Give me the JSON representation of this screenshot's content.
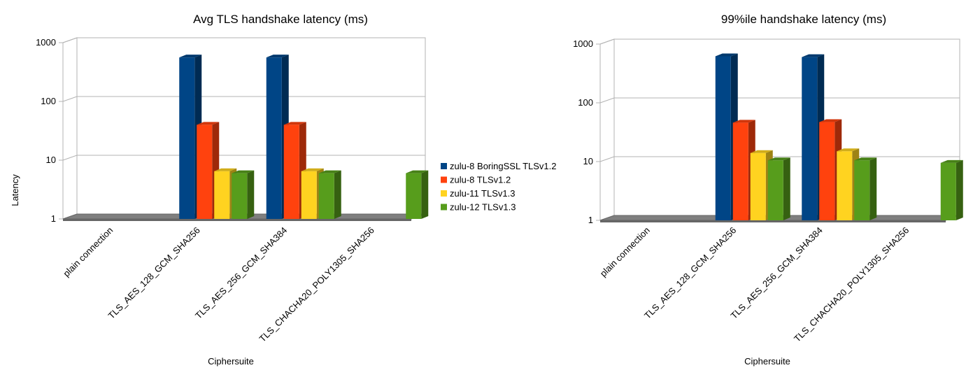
{
  "legend": {
    "placement": "between charts",
    "items": [
      {
        "label": "zulu-8 BoringSSL TLSv1.2",
        "color": "#004586"
      },
      {
        "label": "zulu-8 TLSv1.2",
        "color": "#ff420e"
      },
      {
        "label": "zulu-11 TLSv1.3",
        "color": "#ffd320"
      },
      {
        "label": "zulu-12 TLSv1.3",
        "color": "#579d1c"
      }
    ]
  },
  "chart_data": [
    {
      "type": "bar",
      "title": "Avg TLS handshake latency (ms)",
      "xlabel": "Ciphersuite",
      "ylabel": "Latency",
      "yscale": "log",
      "ylim": [
        1,
        1000
      ],
      "yticks": [
        "1",
        "10",
        "100",
        "1000"
      ],
      "grid": true,
      "categories": [
        "plain connection",
        "TLS_AES_128_GCM_SHA256",
        "TLS_AES_256_GCM_SHA384",
        "TLS_CHACHA20_POLY1305_SHA256"
      ],
      "series": [
        {
          "name": "zulu-8 BoringSSL TLSv1.2",
          "color": "#004586",
          "values": [
            null,
            560,
            560,
            null
          ]
        },
        {
          "name": "zulu-8 TLSv1.2",
          "color": "#ff420e",
          "values": [
            null,
            40,
            40,
            null
          ]
        },
        {
          "name": "zulu-11 TLSv1.3",
          "color": "#ffd320",
          "values": [
            null,
            6.5,
            6.5,
            null
          ]
        },
        {
          "name": "zulu-12 TLSv1.3",
          "color": "#579d1c",
          "values": [
            null,
            6,
            6,
            6
          ]
        }
      ]
    },
    {
      "type": "bar",
      "title": "99%ile handshake latency (ms)",
      "xlabel": "Ciphersuite",
      "ylabel": "",
      "yscale": "log",
      "ylim": [
        1,
        1000
      ],
      "yticks": [
        "1",
        "10",
        "100",
        "1000"
      ],
      "grid": true,
      "categories": [
        "plain connection",
        "TLS_AES_128_GCM_SHA256",
        "TLS_AES_256_GCM_SHA384",
        "TLS_CHACHA20_POLY1305_SHA256"
      ],
      "series": [
        {
          "name": "zulu-8 BoringSSL TLSv1.2",
          "color": "#004586",
          "values": [
            null,
            620,
            600,
            null
          ]
        },
        {
          "name": "zulu-8 TLSv1.2",
          "color": "#ff420e",
          "values": [
            null,
            46,
            47,
            null
          ]
        },
        {
          "name": "zulu-11 TLSv1.3",
          "color": "#ffd320",
          "values": [
            null,
            14,
            15,
            null
          ]
        },
        {
          "name": "zulu-12 TLSv1.3",
          "color": "#579d1c",
          "values": [
            null,
            10.5,
            10.5,
            9.5
          ]
        }
      ]
    }
  ]
}
